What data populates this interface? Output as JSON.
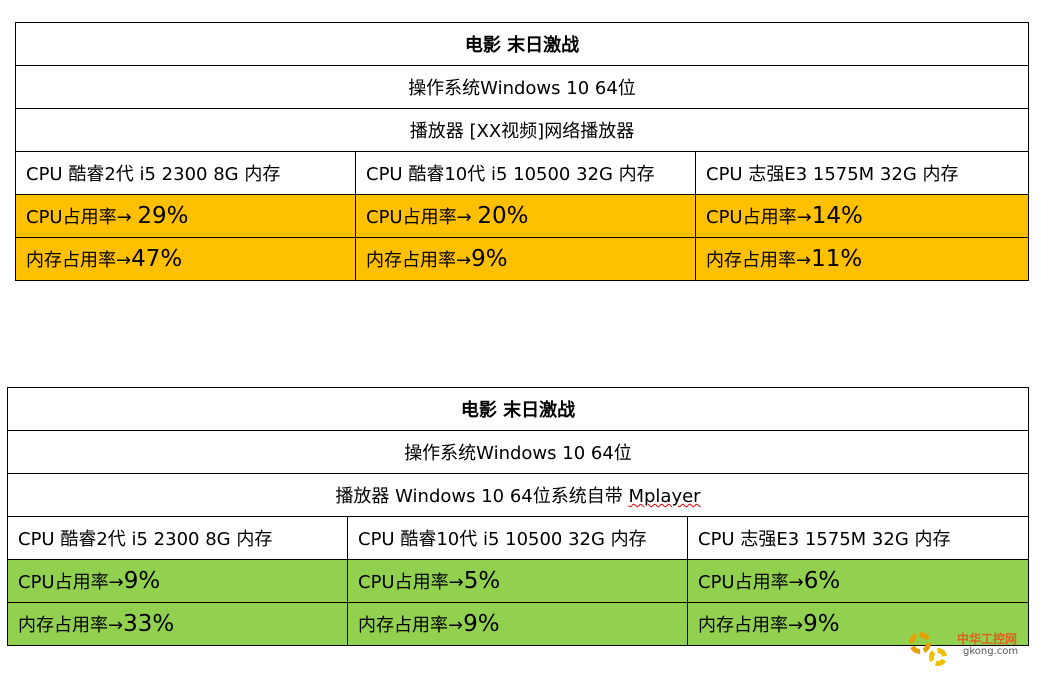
{
  "tables": [
    {
      "title": "电影 末日激战",
      "os": "操作系统Windows 10 64位",
      "player": "播放器 [XX视频]网络播放器",
      "player_underlined": "",
      "row_color": "#ffc000",
      "hardware": [
        "CPU 酷睿2代  i5 2300  8G 内存",
        "CPU 酷睿10代  i5 10500  32G 内存",
        "CPU 志强E3 1575M   32G 内存"
      ],
      "cpu_label": [
        "CPU占用率→ ",
        "CPU占用率→ ",
        "CPU占用率→"
      ],
      "cpu_value": [
        "29%",
        "20%",
        "14%"
      ],
      "mem_label": [
        "内存占用率→",
        "内存占用率→",
        "内存占用率→"
      ],
      "mem_value": [
        "47%",
        "9%",
        "11%"
      ]
    },
    {
      "title": "电影 末日激战",
      "os": "操作系统Windows 10 64位",
      "player": "播放器  Windows 10 64位系统自带 ",
      "player_underlined": "Mplayer",
      "row_color": "#92d050",
      "hardware": [
        "CPU 酷睿2代  i5 2300  8G 内存",
        "CPU 酷睿10代  i5 10500  32G 内存",
        "CPU 志强E3 1575M   32G 内存"
      ],
      "cpu_label": [
        "CPU占用率→",
        "CPU占用率→",
        "CPU占用率→"
      ],
      "cpu_value": [
        "9%",
        "5%",
        "6%"
      ],
      "mem_label": [
        "内存占用率→",
        "内存占用率→",
        "内存占用率→"
      ],
      "mem_value": [
        "33%",
        "9%",
        "9%"
      ]
    }
  ],
  "watermark": {
    "text": "中华工控网",
    "sub": "gkong.com",
    "icon": "gear-icon"
  }
}
